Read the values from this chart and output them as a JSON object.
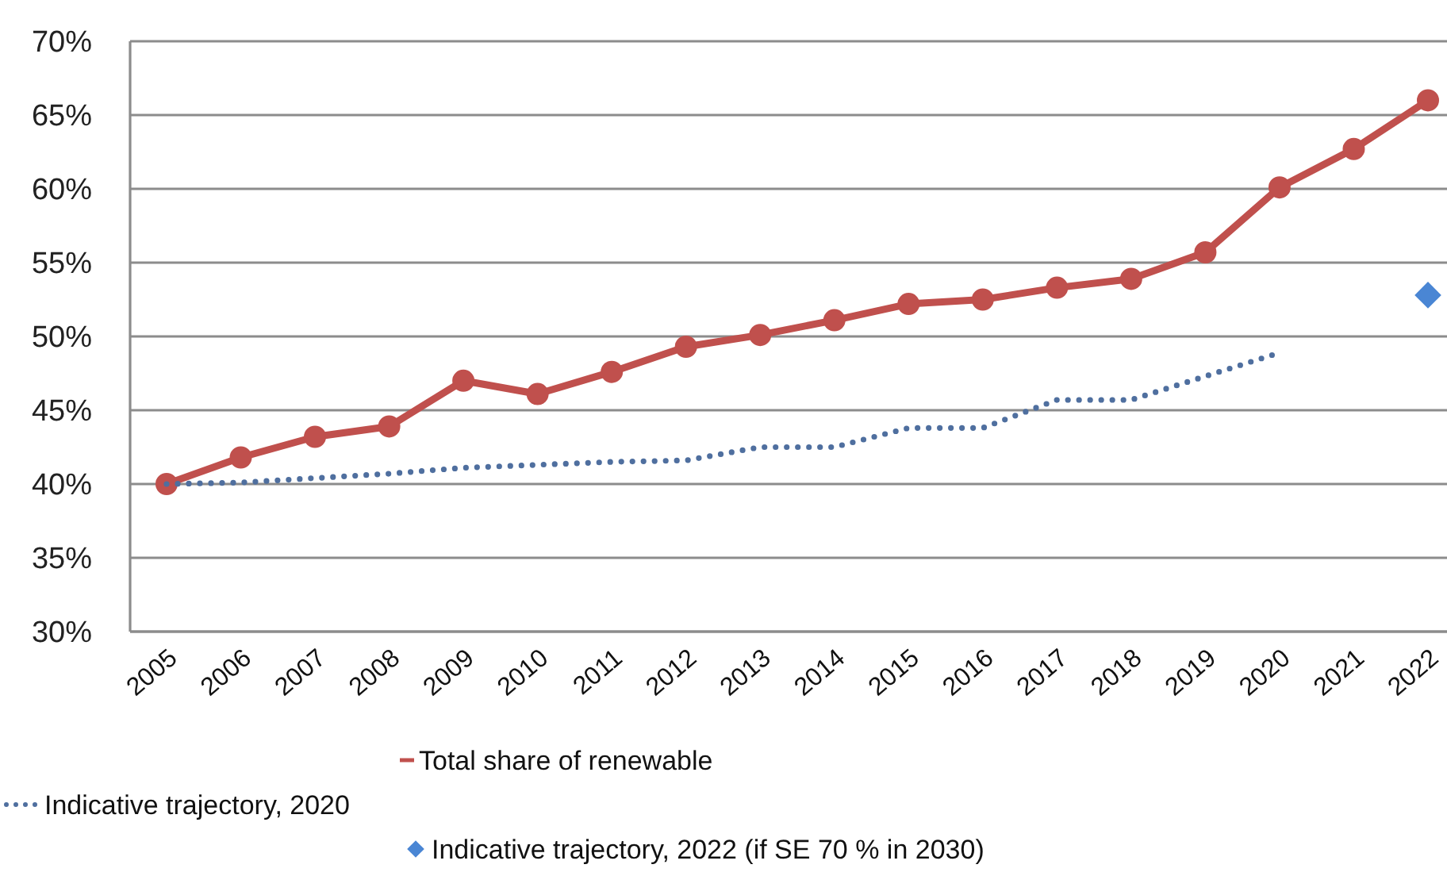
{
  "chart_data": {
    "type": "line",
    "categories": [
      "2005",
      "2006",
      "2007",
      "2008",
      "2009",
      "2010",
      "2011",
      "2012",
      "2013",
      "2014",
      "2015",
      "2016",
      "2017",
      "2018",
      "2019",
      "2020",
      "2021",
      "2022"
    ],
    "series": [
      {
        "name": "Total share of renewable",
        "color": "#c0504d",
        "marker": "circle",
        "line_style": "solid",
        "values": [
          40.0,
          41.8,
          43.2,
          43.9,
          47.0,
          46.1,
          47.6,
          49.3,
          50.1,
          51.1,
          52.2,
          52.5,
          53.3,
          53.9,
          55.7,
          60.1,
          62.7,
          66.0
        ]
      },
      {
        "name": "Indicative trajectory, 2020",
        "color": "#4f6f9f",
        "marker": "none",
        "line_style": "dotted",
        "values": [
          40.0,
          40.1,
          40.4,
          40.7,
          41.1,
          41.3,
          41.5,
          41.6,
          42.5,
          42.5,
          43.8,
          43.8,
          45.7,
          45.7,
          47.3,
          48.9,
          null,
          null
        ]
      },
      {
        "name": "Indicative trajectory, 2022 (if SE 70 % in 2030)",
        "type": "scatter",
        "color": "#4a86d4",
        "marker": "diamond",
        "values": [
          null,
          null,
          null,
          null,
          null,
          null,
          null,
          null,
          null,
          null,
          null,
          null,
          null,
          null,
          null,
          null,
          null,
          52.8
        ]
      }
    ],
    "ylim": [
      30,
      70
    ],
    "yticks": [
      {
        "value": 30,
        "label": "30%"
      },
      {
        "value": 35,
        "label": "35%"
      },
      {
        "value": 40,
        "label": "40%"
      },
      {
        "value": 45,
        "label": "45%"
      },
      {
        "value": 50,
        "label": "50%"
      },
      {
        "value": 55,
        "label": "55%"
      },
      {
        "value": 60,
        "label": "60%"
      },
      {
        "value": 65,
        "label": "65%"
      },
      {
        "value": 70,
        "label": "70%"
      }
    ],
    "grid": "y",
    "legend": "bottom"
  }
}
